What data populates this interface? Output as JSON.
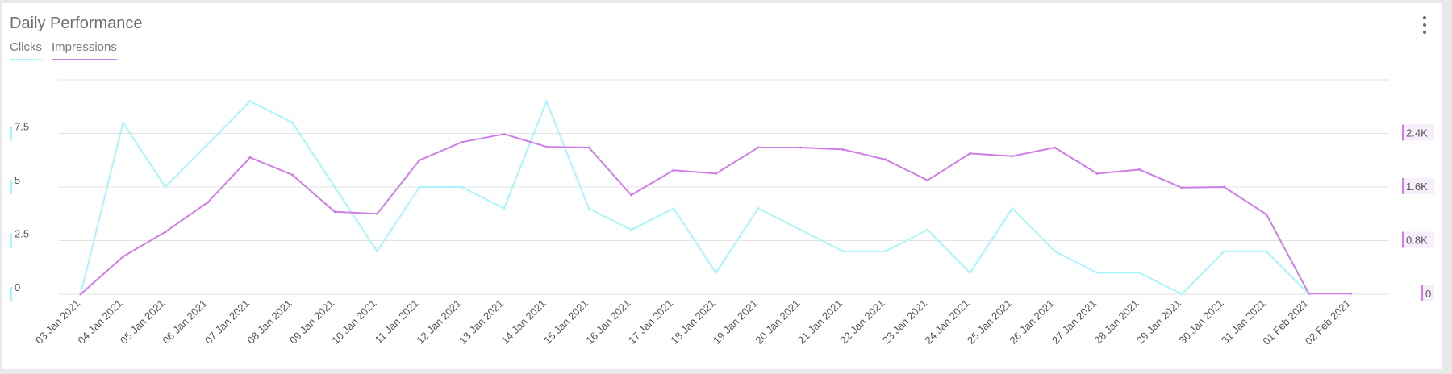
{
  "widget": {
    "title": "Daily Performance",
    "menu_icon": "vertical-dots-icon"
  },
  "colors": {
    "clicks": "#a9f5fb",
    "impressions": "#cf7ee8",
    "grid": "#e3e3e3",
    "axis_text": "#555555"
  },
  "chart_data": {
    "type": "line",
    "title": "Daily Performance",
    "legend_position": "top-left",
    "grid": true,
    "x": [
      "03 Jan 2021",
      "04 Jan 2021",
      "05 Jan 2021",
      "06 Jan 2021",
      "07 Jan 2021",
      "08 Jan 2021",
      "09 Jan 2021",
      "10 Jan 2021",
      "11 Jan 2021",
      "12 Jan 2021",
      "13 Jan 2021",
      "14 Jan 2021",
      "15 Jan 2021",
      "16 Jan 2021",
      "17 Jan 2021",
      "18 Jan 2021",
      "19 Jan 2021",
      "20 Jan 2021",
      "21 Jan 2021",
      "22 Jan 2021",
      "23 Jan 2021",
      "24 Jan 2021",
      "25 Jan 2021",
      "26 Jan 2021",
      "27 Jan 2021",
      "28 Jan 2021",
      "29 Jan 2021",
      "30 Jan 2021",
      "31 Jan 2021",
      "01 Feb 2021",
      "02 Feb 2021"
    ],
    "y_left": {
      "ticks": [
        "0",
        "2.5",
        "5",
        "7.5"
      ],
      "range": [
        0,
        10
      ]
    },
    "y_right": {
      "ticks": [
        "0",
        "0.8K",
        "1.6K",
        "2.4K"
      ],
      "range": [
        0,
        3200
      ]
    },
    "series": [
      {
        "name": "Clicks",
        "axis": "left",
        "values": [
          0,
          8,
          5,
          7,
          9,
          8,
          5,
          2,
          5,
          5,
          4,
          9,
          4,
          3,
          4,
          1,
          4,
          3,
          2,
          2,
          3,
          1,
          4,
          2,
          1,
          1,
          0,
          2,
          2,
          0,
          null
        ]
      },
      {
        "name": "Impressions",
        "axis": "right",
        "values": [
          0,
          560,
          930,
          1370,
          2040,
          1780,
          1230,
          1200,
          2000,
          2270,
          2390,
          2200,
          2190,
          1480,
          1850,
          1800,
          2190,
          2190,
          2160,
          2010,
          1700,
          2100,
          2060,
          2190,
          1800,
          1860,
          1590,
          1600,
          1190,
          10,
          10
        ]
      }
    ]
  }
}
